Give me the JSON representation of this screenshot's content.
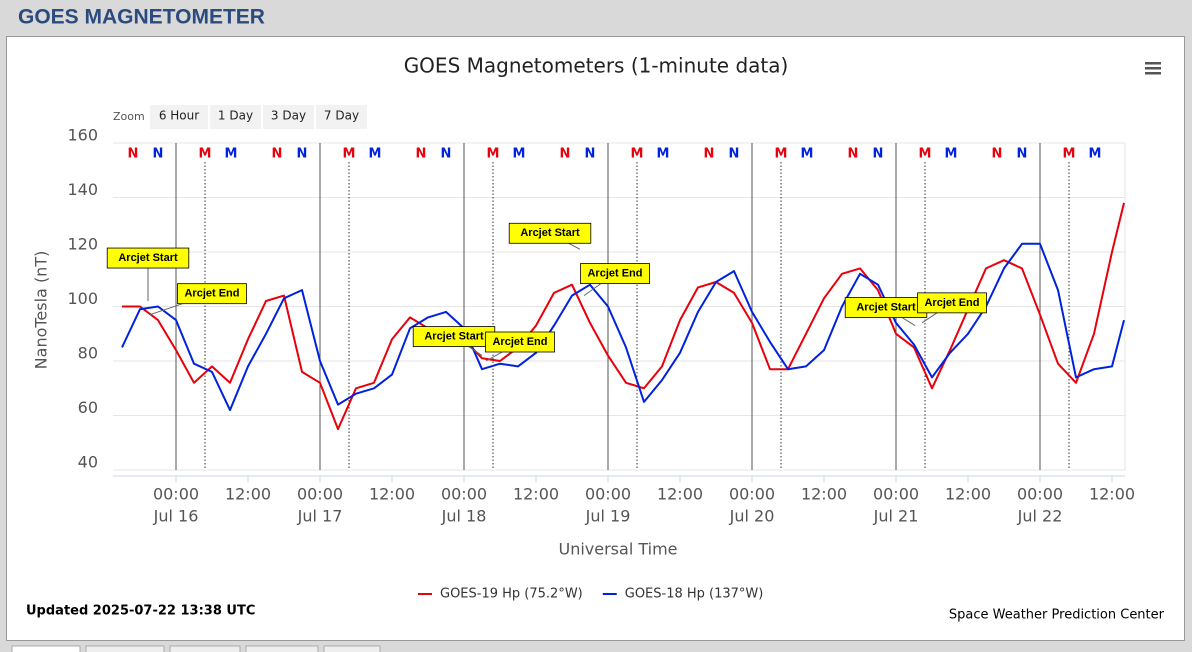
{
  "page_title": "GOES MAGNETOMETER",
  "zoom": {
    "label": "Zoom",
    "buttons": [
      "6 Hour",
      "1 Day",
      "3 Day",
      "7 Day"
    ]
  },
  "updated": "Updated 2025-07-22 13:38 UTC",
  "chart_data": {
    "type": "line",
    "title": "GOES Magnetometers (1-minute data)",
    "x_label": "Universal Time",
    "y_label": "NanoTesla (nT)",
    "credits": "Space Weather Prediction Center",
    "xlim": [
      "Jul 15 13:30",
      "Jul 22 14:10"
    ],
    "xticks": [
      {
        "value": "Jul 16 00:00",
        "label": "00:00",
        "date": "Jul 16"
      },
      {
        "value": "Jul 16 12:00",
        "label": "12:00"
      },
      {
        "value": "Jul 17 00:00",
        "label": "00:00",
        "date": "Jul 17"
      },
      {
        "value": "Jul 17 12:00",
        "label": "12:00"
      },
      {
        "value": "Jul 18 00:00",
        "label": "00:00",
        "date": "Jul 18"
      },
      {
        "value": "Jul 18 12:00",
        "label": "12:00"
      },
      {
        "value": "Jul 19 00:00",
        "label": "00:00",
        "date": "Jul 19"
      },
      {
        "value": "Jul 19 12:00",
        "label": "12:00"
      },
      {
        "value": "Jul 20 00:00",
        "label": "00:00",
        "date": "Jul 20"
      },
      {
        "value": "Jul 20 12:00",
        "label": "12:00"
      },
      {
        "value": "Jul 21 00:00",
        "label": "00:00",
        "date": "Jul 21"
      },
      {
        "value": "Jul 21 12:00",
        "label": "12:00"
      },
      {
        "value": "Jul 22 00:00",
        "label": "00:00",
        "date": "Jul 22"
      },
      {
        "value": "Jul 22 12:00",
        "label": "12:00"
      }
    ],
    "ylim": [
      40,
      160
    ],
    "yticks": [
      40,
      60,
      80,
      100,
      120,
      140,
      160
    ],
    "grid": true,
    "x": [
      "Jul 15 15:00",
      "Jul 15 18:00",
      "Jul 15 21:00",
      "Jul 16 00:00",
      "Jul 16 03:00",
      "Jul 16 06:00",
      "Jul 16 09:00",
      "Jul 16 12:00",
      "Jul 16 15:00",
      "Jul 16 18:00",
      "Jul 16 21:00",
      "Jul 17 00:00",
      "Jul 17 03:00",
      "Jul 17 06:00",
      "Jul 17 09:00",
      "Jul 17 12:00",
      "Jul 17 15:00",
      "Jul 17 18:00",
      "Jul 17 21:00",
      "Jul 18 00:00",
      "Jul 18 03:00",
      "Jul 18 06:00",
      "Jul 18 09:00",
      "Jul 18 12:00",
      "Jul 18 15:00",
      "Jul 18 18:00",
      "Jul 18 21:00",
      "Jul 19 00:00",
      "Jul 19 03:00",
      "Jul 19 06:00",
      "Jul 19 09:00",
      "Jul 19 12:00",
      "Jul 19 15:00",
      "Jul 19 18:00",
      "Jul 19 21:00",
      "Jul 20 00:00",
      "Jul 20 03:00",
      "Jul 20 06:00",
      "Jul 20 09:00",
      "Jul 20 12:00",
      "Jul 20 15:00",
      "Jul 20 18:00",
      "Jul 20 21:00",
      "Jul 21 00:00",
      "Jul 21 03:00",
      "Jul 21 06:00",
      "Jul 21 09:00",
      "Jul 21 12:00",
      "Jul 21 15:00",
      "Jul 21 18:00",
      "Jul 21 21:00",
      "Jul 22 00:00",
      "Jul 22 03:00",
      "Jul 22 06:00",
      "Jul 22 09:00",
      "Jul 22 12:00",
      "Jul 22 14:00"
    ],
    "series": [
      {
        "name": "GOES-19 Hp (75.2°W)",
        "color": "#e8000b",
        "values": [
          100,
          100,
          95,
          84,
          72,
          78,
          72,
          88,
          102,
          104,
          76,
          72,
          55,
          70,
          72,
          88,
          96,
          92,
          90,
          88,
          81,
          80,
          85,
          93,
          105,
          108,
          94,
          82,
          72,
          70,
          78,
          95,
          107,
          109,
          105,
          94,
          77,
          77,
          90,
          103,
          112,
          114,
          106,
          90,
          85,
          70,
          84,
          99,
          114,
          117,
          114,
          97,
          79,
          72,
          90,
          120,
          138
        ]
      },
      {
        "name": "GOES-18 Hp (137°W)",
        "color": "#0022dd",
        "values": [
          85,
          99,
          100,
          95,
          79,
          76,
          62,
          78,
          90,
          103,
          106,
          80,
          64,
          68,
          70,
          75,
          92,
          96,
          98,
          92,
          77,
          79,
          78,
          83,
          93,
          104,
          108,
          100,
          85,
          65,
          73,
          83,
          98,
          109,
          113,
          98,
          87,
          77,
          78,
          84,
          100,
          112,
          108,
          94,
          86,
          74,
          83,
          90,
          100,
          114,
          123,
          123,
          106,
          74,
          77,
          78,
          95
        ]
      }
    ],
    "markers": [
      {
        "label": "N",
        "color": "#e8000b",
        "x": [
          "Jul 15 16:50",
          "Jul 16 16:50",
          "Jul 17 16:50",
          "Jul 18 16:50",
          "Jul 19 16:50",
          "Jul 20 16:50",
          "Jul 21 16:50"
        ]
      },
      {
        "label": "N",
        "color": "#0022dd",
        "x": [
          "Jul 15 21:00",
          "Jul 16 21:00",
          "Jul 17 21:00",
          "Jul 18 21:00",
          "Jul 19 21:00",
          "Jul 20 21:00",
          "Jul 21 21:00"
        ]
      },
      {
        "label": "M",
        "color": "#e8000b",
        "dotted_line": true,
        "x": [
          "Jul 16 04:50",
          "Jul 17 04:50",
          "Jul 18 04:50",
          "Jul 19 04:50",
          "Jul 20 04:50",
          "Jul 21 04:50",
          "Jul 22 04:50"
        ]
      },
      {
        "label": "M",
        "color": "#0022dd",
        "x": [
          "Jul 16 09:10",
          "Jul 17 09:10",
          "Jul 18 09:10",
          "Jul 19 09:10",
          "Jul 20 09:10",
          "Jul 21 09:10",
          "Jul 22 09:10"
        ]
      }
    ],
    "annotations": [
      {
        "label": "Arcjet Start",
        "x": "Jul 15 19:20",
        "y": 102
      },
      {
        "label": "Arcjet End",
        "x": "Jul 15 19:40",
        "y": 97
      },
      {
        "label": "Arcjet Start",
        "x": "Jul 18 03:00",
        "y": 82
      },
      {
        "label": "Arcjet End",
        "x": "Jul 18 03:40",
        "y": 80
      },
      {
        "label": "Arcjet Start",
        "x": "Jul 18 19:20",
        "y": 121
      },
      {
        "label": "Arcjet End",
        "x": "Jul 18 20:00",
        "y": 104
      },
      {
        "label": "Arcjet Start",
        "x": "Jul 21 03:10",
        "y": 93
      },
      {
        "label": "Arcjet End",
        "x": "Jul 21 04:20",
        "y": 94
      }
    ]
  }
}
